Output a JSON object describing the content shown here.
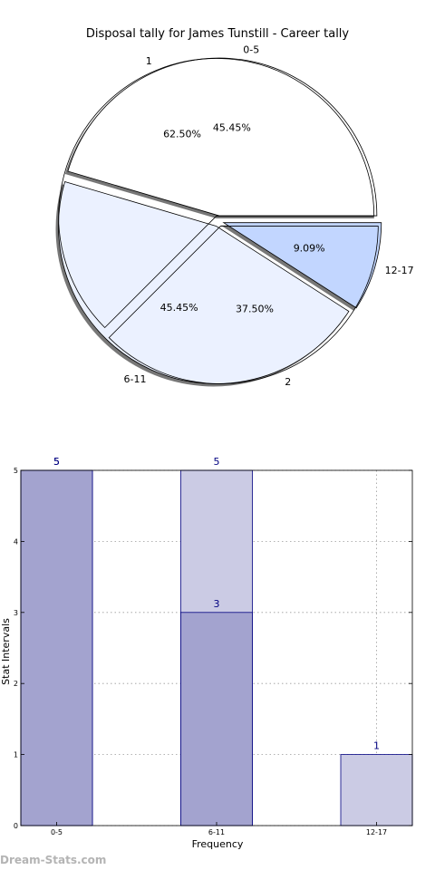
{
  "title": "Disposal tally for James Tunstill - Career tally",
  "watermark": "Dream-Stats.com",
  "chart_data": [
    {
      "type": "pie",
      "title": "Disposal tally for James Tunstill - Career tally",
      "rings": [
        {
          "name": "outer",
          "slices": [
            {
              "label": "0-5",
              "value": 5,
              "percent": "45.45%",
              "color": "#ffffff"
            },
            {
              "label": "6-11",
              "value": 5,
              "percent": "45.45%",
              "color": "#ebf1ff"
            },
            {
              "label": "12-17",
              "value": 1,
              "percent": "9.09%",
              "color": "#c2d6ff"
            }
          ]
        },
        {
          "name": "inner",
          "slices": [
            {
              "label": "1",
              "value": 5,
              "percent": "62.50%"
            },
            {
              "label": "2",
              "value": 3,
              "percent": "37.50%"
            }
          ]
        }
      ],
      "shadow": true,
      "exploded": true
    },
    {
      "type": "bar",
      "categories": [
        "0-5",
        "6-11",
        "12-17"
      ],
      "series": [
        {
          "values": [
            5,
            5,
            1
          ],
          "color": "#cbcbe4"
        },
        {
          "values": [
            5,
            3,
            0
          ],
          "color": "#a3a3cf"
        }
      ],
      "xlabel": "Frequency",
      "ylabel": "Stat Intervals",
      "ylim": [
        0,
        5
      ],
      "yticks": [
        0,
        1,
        2,
        3,
        4,
        5
      ],
      "grid": true,
      "edge_color": "#000080",
      "label_color": "#000080"
    }
  ]
}
